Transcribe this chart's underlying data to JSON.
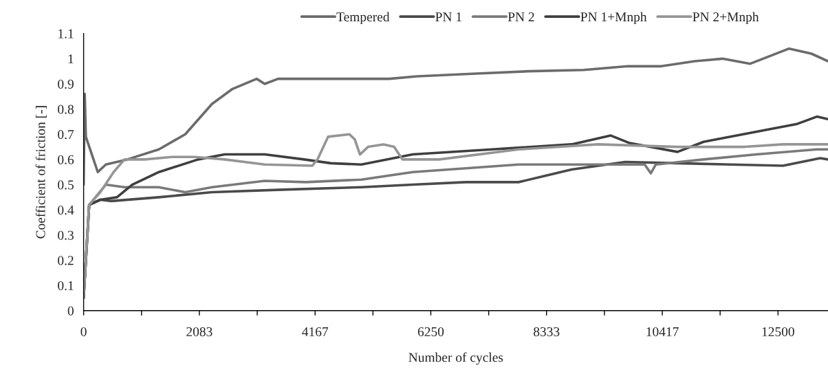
{
  "chart_data": {
    "type": "line",
    "xlabel": "Number of cycles",
    "ylabel": "Coefficient of friction [-]",
    "xlim": [
      0,
      13400
    ],
    "ylim": [
      0,
      1.1
    ],
    "xticks": [
      0,
      {
        "value": 1042,
        "label": null
      },
      2083,
      {
        "value": 3125,
        "label": null
      },
      4167,
      {
        "value": 5208,
        "label": null
      },
      6250,
      {
        "value": 7292,
        "label": null
      },
      8333,
      {
        "value": 9375,
        "label": null
      },
      10417,
      {
        "value": 11458,
        "label": null
      },
      12500
    ],
    "yticks": [
      0,
      0.1,
      0.2,
      0.3,
      0.4,
      0.5,
      0.6,
      0.7,
      0.8,
      0.9,
      1,
      1.1
    ],
    "legend": "top",
    "grid": false,
    "marker": "none",
    "line_style": "solid",
    "series": [
      {
        "name": "Tempered",
        "color": "#6b6b6b",
        "x": [
          0,
          20,
          40,
          255,
          400,
          785,
          1355,
          1830,
          2310,
          2680,
          3115,
          3260,
          3500,
          4500,
          5500,
          6000,
          7000,
          8000,
          9000,
          9800,
          10400,
          11000,
          11500,
          12000,
          12700,
          13100,
          13400
        ],
        "values": [
          0.5,
          0.86,
          0.69,
          0.55,
          0.58,
          0.6,
          0.64,
          0.7,
          0.82,
          0.88,
          0.92,
          0.9,
          0.92,
          0.92,
          0.92,
          0.93,
          0.94,
          0.95,
          0.955,
          0.97,
          0.97,
          0.99,
          1.0,
          0.98,
          1.04,
          1.02,
          0.99
        ]
      },
      {
        "name": "PN 1",
        "color": "#4a4a4a",
        "x": [
          0,
          100,
          300,
          500,
          1350,
          2310,
          3570,
          5000,
          5925,
          6880,
          7830,
          8785,
          9750,
          10690,
          11640,
          12590,
          13260,
          13400
        ],
        "values": [
          0.05,
          0.42,
          0.44,
          0.435,
          0.45,
          0.47,
          0.48,
          0.49,
          0.5,
          0.51,
          0.51,
          0.56,
          0.59,
          0.585,
          0.58,
          0.575,
          0.605,
          0.6
        ]
      },
      {
        "name": "PN 2",
        "color": "#7a7a7a",
        "x": [
          0,
          100,
          400,
          735,
          1350,
          1830,
          2310,
          3260,
          4000,
          5000,
          5925,
          6880,
          7830,
          8785,
          10100,
          10210,
          10300,
          11160,
          12115,
          13200,
          13400
        ],
        "values": [
          0.05,
          0.42,
          0.5,
          0.49,
          0.49,
          0.47,
          0.49,
          0.515,
          0.51,
          0.52,
          0.55,
          0.565,
          0.58,
          0.58,
          0.58,
          0.545,
          0.58,
          0.6,
          0.62,
          0.64,
          0.64
        ]
      },
      {
        "name": "PN 1+Mnph",
        "color": "#3f3f3f",
        "x": [
          0,
          100,
          300,
          600,
          875,
          1355,
          2060,
          2540,
          3260,
          3970,
          4450,
          5000,
          5925,
          7350,
          8785,
          9490,
          9830,
          10690,
          11160,
          12115,
          12830,
          13200,
          13400
        ],
        "values": [
          0.05,
          0.42,
          0.44,
          0.45,
          0.5,
          0.55,
          0.6,
          0.62,
          0.62,
          0.6,
          0.585,
          0.58,
          0.62,
          0.64,
          0.66,
          0.695,
          0.665,
          0.63,
          0.67,
          0.71,
          0.74,
          0.77,
          0.76
        ]
      },
      {
        "name": "PN 2+Mnph",
        "color": "#959595",
        "x": [
          0,
          100,
          300,
          540,
          735,
          1100,
          1590,
          2000,
          2540,
          3260,
          4115,
          4210,
          4400,
          4785,
          4880,
          4975,
          5120,
          5400,
          5590,
          5740,
          5900,
          6400,
          7830,
          9260,
          10690,
          11900,
          12590,
          13400
        ],
        "values": [
          0.05,
          0.42,
          0.47,
          0.55,
          0.6,
          0.6,
          0.61,
          0.61,
          0.6,
          0.58,
          0.575,
          0.6,
          0.69,
          0.7,
          0.68,
          0.62,
          0.65,
          0.66,
          0.65,
          0.6,
          0.6,
          0.6,
          0.64,
          0.66,
          0.65,
          0.65,
          0.66,
          0.66
        ]
      }
    ]
  }
}
